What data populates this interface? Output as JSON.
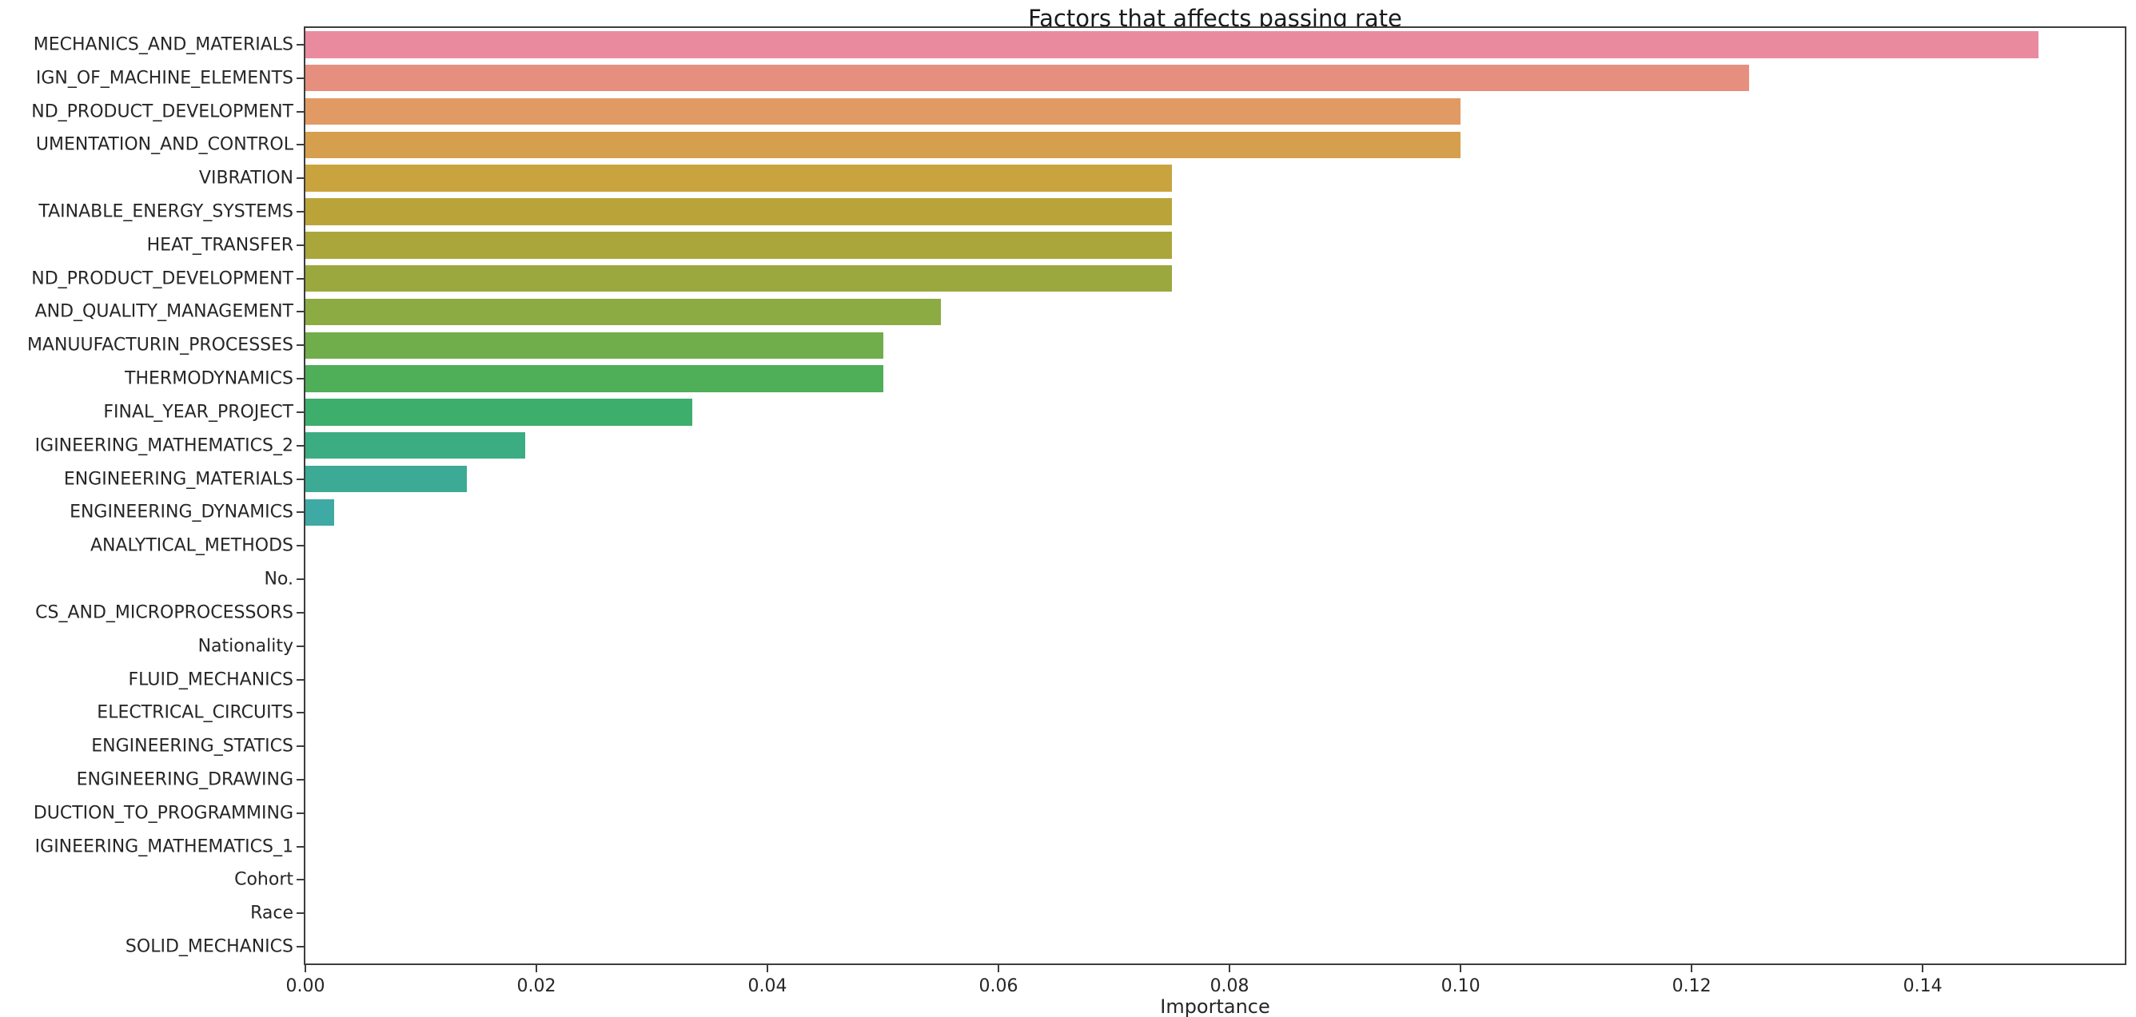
{
  "chart_data": {
    "type": "bar",
    "orientation": "horizontal",
    "title": "Factors that affects passing rate",
    "xlabel": "Importance",
    "ylabel": "",
    "xlim": [
      0,
      0.1575
    ],
    "xticks": [
      0.0,
      0.02,
      0.04,
      0.06,
      0.08,
      0.1,
      0.12,
      0.14
    ],
    "xtick_labels": [
      "0.00",
      "0.02",
      "0.04",
      "0.06",
      "0.08",
      "0.10",
      "0.12",
      "0.14"
    ],
    "grid": false,
    "legend_position": "none",
    "bars": [
      {
        "label": "MECHANICS_AND_MATERIALS",
        "value": 0.15,
        "color": "#ea8a9e"
      },
      {
        "label": "IGN_OF_MACHINE_ELEMENTS",
        "value": 0.125,
        "color": "#e78f7e"
      },
      {
        "label": "ND_PRODUCT_DEVELOPMENT",
        "value": 0.1,
        "color": "#e19a64"
      },
      {
        "label": "UMENTATION_AND_CONTROL",
        "value": 0.1,
        "color": "#d69f4d"
      },
      {
        "label": "VIBRATION",
        "value": 0.075,
        "color": "#c9a33e"
      },
      {
        "label": "TAINABLE_ENERGY_SYSTEMS",
        "value": 0.075,
        "color": "#baa43a"
      },
      {
        "label": "HEAT_TRANSFER",
        "value": 0.075,
        "color": "#aaa63b"
      },
      {
        "label": "ND_PRODUCT_DEVELOPMENT",
        "value": 0.075,
        "color": "#9ba83d"
      },
      {
        "label": "AND_QUALITY_MANAGEMENT",
        "value": 0.055,
        "color": "#8cab42"
      },
      {
        "label": "MANUUFACTURIN_PROCESSES",
        "value": 0.05,
        "color": "#70ad4b"
      },
      {
        "label": "THERMODYNAMICS",
        "value": 0.05,
        "color": "#4fae58"
      },
      {
        "label": "FINAL_YEAR_PROJECT",
        "value": 0.0335,
        "color": "#3dae6c"
      },
      {
        "label": "IGINEERING_MATHEMATICS_2",
        "value": 0.019,
        "color": "#3cac83"
      },
      {
        "label": "ENGINEERING_MATERIALS",
        "value": 0.014,
        "color": "#3caa95"
      },
      {
        "label": "ENGINEERING_DYNAMICS",
        "value": 0.0025,
        "color": "#3fa9a3"
      },
      {
        "label": "ANALYTICAL_METHODS",
        "value": 0,
        "color": ""
      },
      {
        "label": "No.",
        "value": 0,
        "color": ""
      },
      {
        "label": "CS_AND_MICROPROCESSORS",
        "value": 0,
        "color": ""
      },
      {
        "label": "Nationality",
        "value": 0,
        "color": ""
      },
      {
        "label": "FLUID_MECHANICS",
        "value": 0,
        "color": ""
      },
      {
        "label": "ELECTRICAL_CIRCUITS",
        "value": 0,
        "color": ""
      },
      {
        "label": "ENGINEERING_STATICS",
        "value": 0,
        "color": ""
      },
      {
        "label": "ENGINEERING_DRAWING",
        "value": 0,
        "color": ""
      },
      {
        "label": "DUCTION_TO_PROGRAMMING",
        "value": 0,
        "color": ""
      },
      {
        "label": "IGINEERING_MATHEMATICS_1",
        "value": 0,
        "color": ""
      },
      {
        "label": "Cohort",
        "value": 0,
        "color": ""
      },
      {
        "label": "Race",
        "value": 0,
        "color": ""
      },
      {
        "label": "SOLID_MECHANICS",
        "value": 0,
        "color": ""
      }
    ]
  }
}
